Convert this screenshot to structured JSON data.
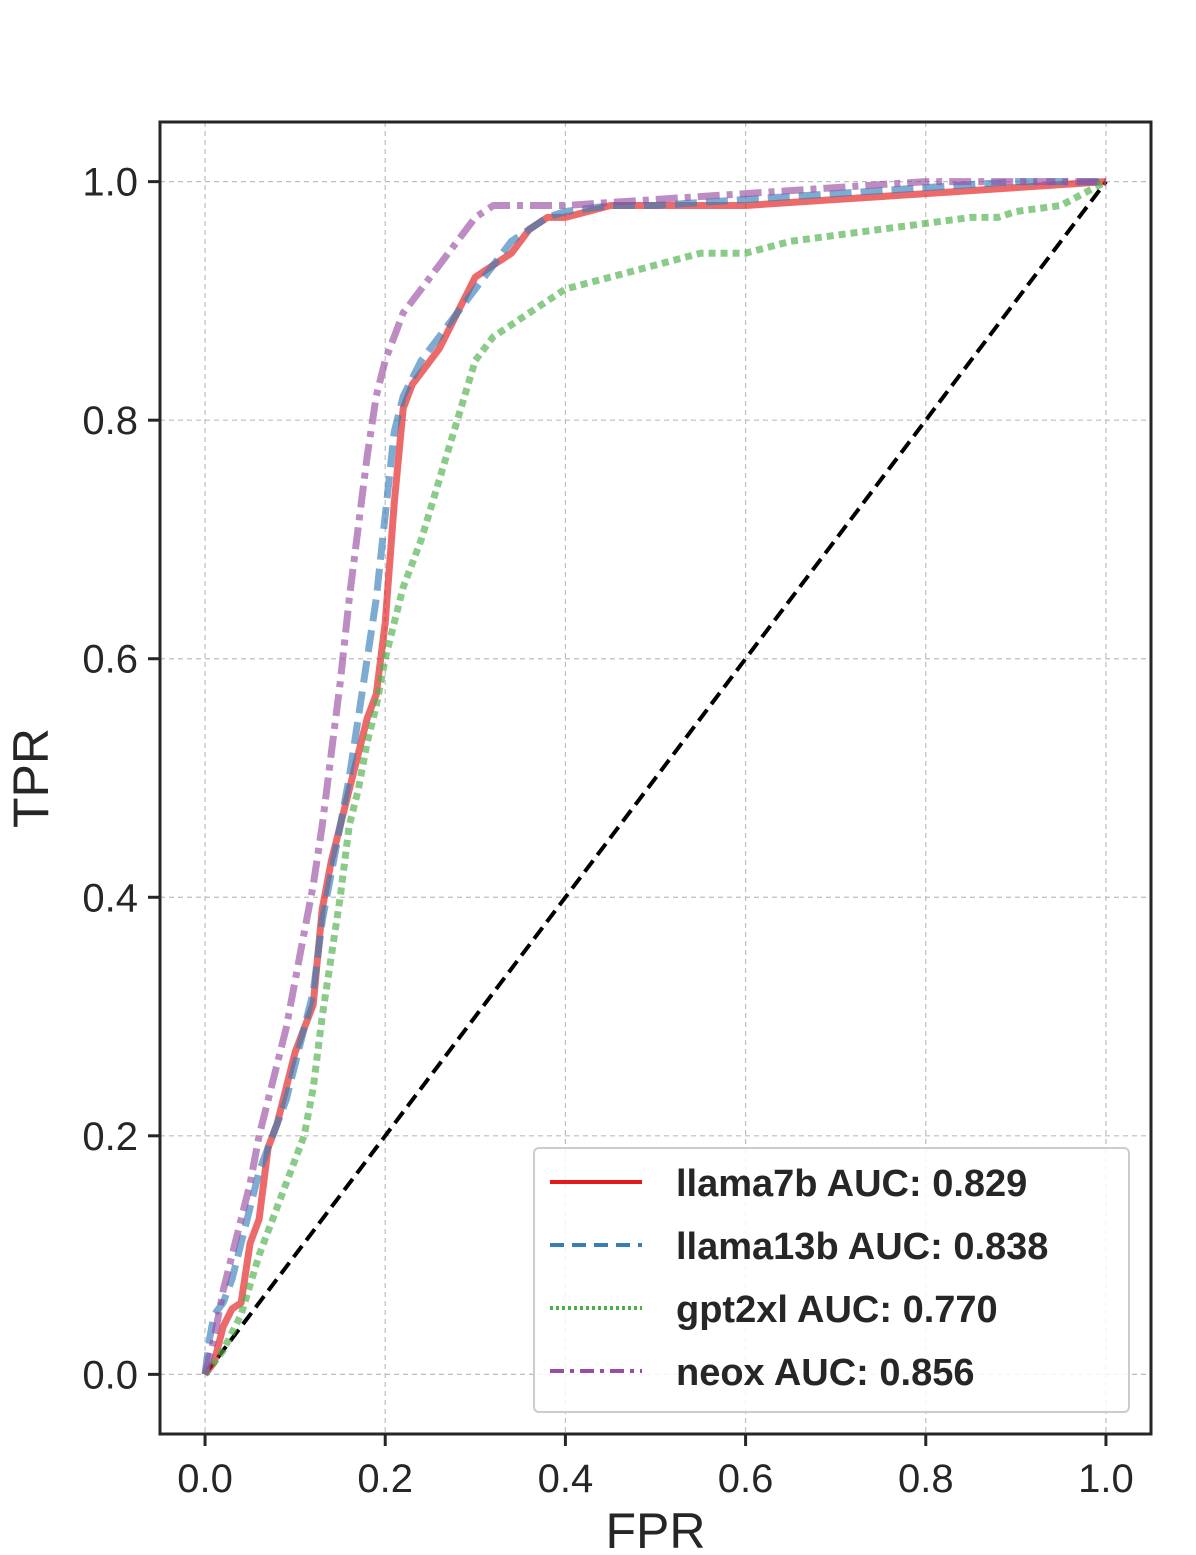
{
  "chart_data": {
    "type": "line",
    "title": "",
    "xlabel": "FPR",
    "ylabel": "TPR",
    "xlim": [
      -0.05,
      1.05
    ],
    "ylim": [
      -0.05,
      1.05
    ],
    "xticks": [
      "0.0",
      "0.2",
      "0.4",
      "0.6",
      "0.8",
      "1.0"
    ],
    "yticks": [
      "0.0",
      "0.2",
      "0.4",
      "0.6",
      "0.8",
      "1.0"
    ],
    "grid": true,
    "legend_position": "lower-right",
    "series": [
      {
        "name": "llama7b",
        "legend_label": "llama7b AUC: 0.829",
        "auc": 0.829,
        "color": "#e41a1c",
        "dash": "solid",
        "x": [
          0,
          0.01,
          0.02,
          0.03,
          0.04,
          0.05,
          0.06,
          0.07,
          0.08,
          0.09,
          0.1,
          0.11,
          0.12,
          0.13,
          0.14,
          0.15,
          0.16,
          0.17,
          0.18,
          0.19,
          0.2,
          0.21,
          0.22,
          0.23,
          0.24,
          0.26,
          0.28,
          0.3,
          0.32,
          0.34,
          0.36,
          0.38,
          0.4,
          0.45,
          0.5,
          0.6,
          0.7,
          0.8,
          0.9,
          1.0
        ],
        "y": [
          0,
          0.01,
          0.04,
          0.055,
          0.06,
          0.11,
          0.13,
          0.19,
          0.21,
          0.24,
          0.27,
          0.29,
          0.31,
          0.39,
          0.43,
          0.46,
          0.49,
          0.52,
          0.55,
          0.57,
          0.63,
          0.73,
          0.81,
          0.83,
          0.84,
          0.86,
          0.89,
          0.92,
          0.93,
          0.94,
          0.96,
          0.97,
          0.97,
          0.98,
          0.98,
          0.98,
          0.985,
          0.99,
          0.995,
          1.0
        ]
      },
      {
        "name": "llama13b",
        "legend_label": "llama13b AUC: 0.838",
        "auc": 0.838,
        "color": "#377eb8",
        "dash": "dashed",
        "x": [
          0,
          0.005,
          0.01,
          0.02,
          0.03,
          0.04,
          0.05,
          0.06,
          0.07,
          0.08,
          0.09,
          0.1,
          0.11,
          0.12,
          0.13,
          0.14,
          0.15,
          0.16,
          0.17,
          0.18,
          0.19,
          0.2,
          0.21,
          0.22,
          0.24,
          0.26,
          0.28,
          0.3,
          0.32,
          0.34,
          0.36,
          0.38,
          0.4,
          0.45,
          0.5,
          0.6,
          0.7,
          0.8,
          0.9,
          1.0
        ],
        "y": [
          0,
          0.03,
          0.05,
          0.06,
          0.08,
          0.11,
          0.14,
          0.17,
          0.19,
          0.21,
          0.23,
          0.26,
          0.29,
          0.32,
          0.38,
          0.42,
          0.46,
          0.5,
          0.55,
          0.6,
          0.65,
          0.72,
          0.79,
          0.82,
          0.85,
          0.87,
          0.89,
          0.91,
          0.93,
          0.95,
          0.96,
          0.97,
          0.975,
          0.98,
          0.98,
          0.985,
          0.99,
          0.995,
          1.0,
          1.0
        ]
      },
      {
        "name": "gpt2xl",
        "legend_label": "gpt2xl AUC: 0.770",
        "auc": 0.77,
        "color": "#4daf4a",
        "dash": "dotted",
        "x": [
          0,
          0.02,
          0.04,
          0.06,
          0.08,
          0.1,
          0.11,
          0.12,
          0.13,
          0.14,
          0.15,
          0.16,
          0.17,
          0.18,
          0.19,
          0.2,
          0.21,
          0.22,
          0.24,
          0.26,
          0.28,
          0.3,
          0.32,
          0.34,
          0.36,
          0.38,
          0.4,
          0.45,
          0.5,
          0.55,
          0.6,
          0.65,
          0.7,
          0.75,
          0.8,
          0.85,
          0.88,
          0.9,
          0.95,
          1.0
        ],
        "y": [
          0,
          0.02,
          0.05,
          0.1,
          0.14,
          0.18,
          0.2,
          0.24,
          0.3,
          0.35,
          0.4,
          0.46,
          0.49,
          0.53,
          0.56,
          0.6,
          0.63,
          0.66,
          0.7,
          0.75,
          0.8,
          0.85,
          0.87,
          0.88,
          0.89,
          0.9,
          0.91,
          0.92,
          0.93,
          0.94,
          0.94,
          0.95,
          0.955,
          0.96,
          0.965,
          0.97,
          0.97,
          0.975,
          0.98,
          1.0
        ]
      },
      {
        "name": "neox",
        "legend_label": "neox AUC: 0.856",
        "auc": 0.856,
        "color": "#984ea3",
        "dash": "dashdot",
        "x": [
          0,
          0.01,
          0.02,
          0.03,
          0.04,
          0.05,
          0.06,
          0.07,
          0.08,
          0.09,
          0.1,
          0.11,
          0.12,
          0.13,
          0.14,
          0.15,
          0.16,
          0.17,
          0.18,
          0.19,
          0.2,
          0.21,
          0.22,
          0.24,
          0.26,
          0.28,
          0.3,
          0.32,
          0.34,
          0.36,
          0.4,
          0.5,
          0.6,
          0.7,
          0.8,
          0.9,
          1.0
        ],
        "y": [
          0,
          0.03,
          0.07,
          0.1,
          0.13,
          0.16,
          0.2,
          0.23,
          0.26,
          0.29,
          0.33,
          0.37,
          0.41,
          0.46,
          0.52,
          0.58,
          0.65,
          0.71,
          0.77,
          0.82,
          0.85,
          0.87,
          0.89,
          0.91,
          0.93,
          0.95,
          0.97,
          0.98,
          0.98,
          0.98,
          0.98,
          0.985,
          0.99,
          0.995,
          1.0,
          1.0,
          1.0
        ]
      },
      {
        "name": "chance",
        "legend_label": "",
        "color": "#000000",
        "dash": "dashed",
        "x": [
          0,
          1
        ],
        "y": [
          0,
          1
        ]
      }
    ]
  }
}
